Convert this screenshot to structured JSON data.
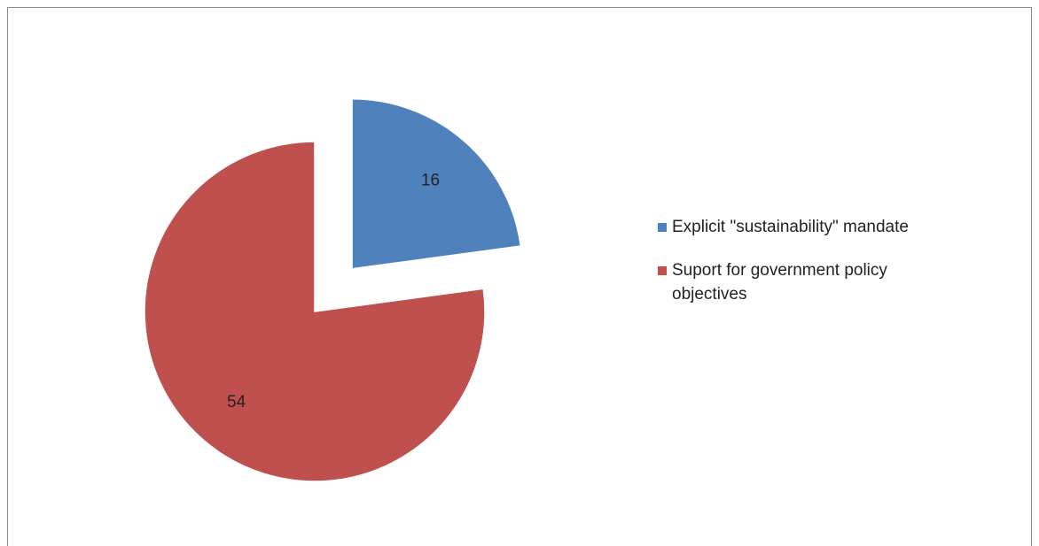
{
  "chart_data": {
    "type": "pie",
    "slices": [
      {
        "label": "Explicit \"sustainability\" mandate",
        "value": 16,
        "color": "#4F81BD",
        "exploded": true
      },
      {
        "label": "Suport for government policy objectives",
        "value": 54,
        "color": "#C0504D",
        "exploded": false
      }
    ],
    "data_labels_shown": true,
    "legend_position": "right",
    "start_angle_deg": 0,
    "direction": "clockwise"
  }
}
